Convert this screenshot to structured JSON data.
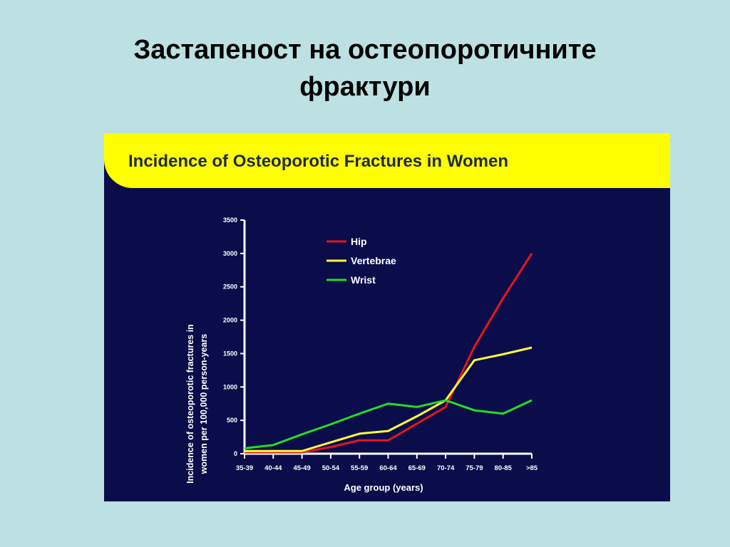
{
  "slide": {
    "title_line1": "Застапеност на остеопоротичните",
    "title_line2": "фрактури"
  },
  "colors": {
    "background": "#bde0e2",
    "panel": "#0a0d4a",
    "banner": "#ffff00",
    "axis": "#ffffff",
    "hip": "#e8141e",
    "vertebrae": "#ffff33",
    "wrist": "#22dd22"
  },
  "chart_data": {
    "type": "line",
    "title": "Incidence of Osteoporotic Fractures in Women",
    "xlabel": "Age group (years)",
    "ylabel_line1": "Incidence of osteoporotic fractures in",
    "ylabel_line2": "women per 100,000 person-years",
    "categories": [
      "35-39",
      "40-44",
      "45-49",
      "50-54",
      "55-59",
      "60-64",
      "65-69",
      "70-74",
      "75-79",
      "80-85",
      ">85"
    ],
    "ylim": [
      0,
      3500
    ],
    "yticks": [
      "0",
      "500",
      "1000",
      "1500",
      "2000",
      "2500",
      "3000",
      "3500"
    ],
    "grid": false,
    "legend_position": "top-left",
    "series": [
      {
        "name": "Hip",
        "color": "#e8141e",
        "values": [
          20,
          20,
          20,
          100,
          200,
          200,
          450,
          700,
          1600,
          2330,
          3000
        ]
      },
      {
        "name": "Vertebrae",
        "color": "#ffff33",
        "values": [
          40,
          40,
          40,
          170,
          300,
          340,
          560,
          800,
          1400,
          1490,
          1590
        ]
      },
      {
        "name": "Wrist",
        "color": "#22dd22",
        "values": [
          80,
          130,
          290,
          440,
          600,
          750,
          700,
          800,
          650,
          600,
          800
        ]
      }
    ]
  }
}
